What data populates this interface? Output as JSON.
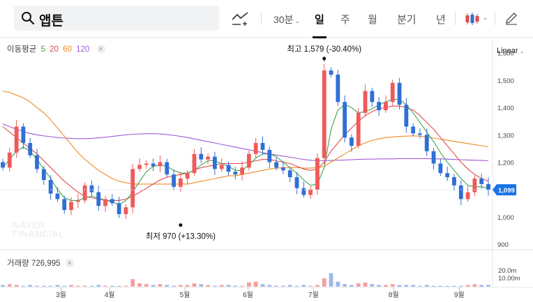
{
  "search": {
    "value": "앱튼"
  },
  "toolbar": {
    "interval_label": "30분",
    "periods": [
      "일",
      "주",
      "월",
      "분기",
      "년"
    ],
    "active_period": "일"
  },
  "legend": {
    "title": "이동평균",
    "ma_periods": [
      {
        "label": "5",
        "color": "#3fa34d"
      },
      {
        "label": "20",
        "color": "#e14b4b"
      },
      {
        "label": "60",
        "color": "#f08a24"
      },
      {
        "label": "120",
        "color": "#a25ad6"
      }
    ],
    "close_icon": "×"
  },
  "scale_mode": "Linear",
  "volume_legend": {
    "label": "거래량 726,995"
  },
  "watermark": [
    "NAVER",
    "FINANCIAL"
  ],
  "colors": {
    "up": "#f05a5a",
    "down": "#2f6fd6",
    "current": "#1a73e8"
  },
  "chart_data": {
    "type": "candlestick",
    "x_ticks": [
      "3월",
      "4월",
      "5월",
      "6월",
      "7월",
      "8월",
      "9월"
    ],
    "y_ticks": [
      "900",
      "1,000",
      "1,100",
      "1,200",
      "1,300",
      "1,400",
      "1,500",
      "1,600"
    ],
    "ylim": [
      880,
      1650
    ],
    "volume_ticks": [
      "20.0m",
      "10.00m"
    ],
    "current_price": "1,099",
    "max_annotation": {
      "text": "최고 1,579 (-30.40%)",
      "value": 1579
    },
    "min_annotation": {
      "text": "최저 970 (+13.30%)",
      "value": 970
    },
    "close_path": [
      1180,
      1235,
      1330,
      1270,
      1225,
      1175,
      1135,
      1085,
      1065,
      1025,
      1055,
      1060,
      1115,
      1090,
      1040,
      1065,
      1050,
      1010,
      1035,
      1175,
      1190,
      1195,
      1185,
      1200,
      1155,
      1110,
      1140,
      1160,
      1230,
      1210,
      1220,
      1175,
      1190,
      1165,
      1155,
      1180,
      1230,
      1270,
      1245,
      1200,
      1180,
      1170,
      1145,
      1105,
      1080,
      1100,
      1215,
      1535,
      1520,
      1420,
      1290,
      1260,
      1380,
      1460,
      1420,
      1390,
      1420,
      1490,
      1410,
      1330,
      1305,
      1300,
      1240,
      1195,
      1160,
      1145,
      1115,
      1065,
      1090,
      1140,
      1120,
      1099
    ],
    "ma_lines": {
      "ma5": [
        1180,
        1210,
        1240,
        1255,
        1240,
        1210,
        1175,
        1140,
        1100,
        1070,
        1060,
        1060,
        1070,
        1075,
        1070,
        1060,
        1055,
        1045,
        1060,
        1090,
        1130,
        1165,
        1185,
        1190,
        1185,
        1170,
        1160,
        1160,
        1170,
        1190,
        1205,
        1205,
        1195,
        1185,
        1170,
        1170,
        1190,
        1215,
        1230,
        1230,
        1220,
        1200,
        1180,
        1160,
        1135,
        1115,
        1120,
        1180,
        1320,
        1390,
        1410,
        1400,
        1380,
        1385,
        1395,
        1410,
        1420,
        1430,
        1430,
        1410,
        1380,
        1345,
        1310,
        1275,
        1235,
        1200,
        1170,
        1140,
        1115,
        1110,
        1110,
        1105
      ],
      "ma20": [
        1330,
        1310,
        1290,
        1270,
        1250,
        1230,
        1205,
        1180,
        1155,
        1130,
        1110,
        1090,
        1075,
        1070,
        1065,
        1060,
        1060,
        1060,
        1065,
        1075,
        1090,
        1105,
        1120,
        1135,
        1145,
        1150,
        1155,
        1160,
        1170,
        1180,
        1185,
        1190,
        1195,
        1195,
        1195,
        1195,
        1200,
        1205,
        1210,
        1210,
        1205,
        1200,
        1195,
        1185,
        1175,
        1170,
        1175,
        1200,
        1240,
        1270,
        1300,
        1325,
        1350,
        1370,
        1385,
        1395,
        1400,
        1405,
        1405,
        1400,
        1390,
        1370,
        1345,
        1320,
        1290,
        1260,
        1230,
        1200,
        1175,
        1155,
        1140,
        1130
      ],
      "ma60": [
        1460,
        1455,
        1445,
        1435,
        1420,
        1400,
        1380,
        1355,
        1325,
        1295,
        1265,
        1235,
        1210,
        1190,
        1170,
        1155,
        1140,
        1130,
        1125,
        1120,
        1120,
        1120,
        1120,
        1120,
        1120,
        1120,
        1120,
        1120,
        1125,
        1130,
        1135,
        1140,
        1145,
        1150,
        1150,
        1155,
        1160,
        1165,
        1170,
        1175,
        1178,
        1180,
        1180,
        1180,
        1178,
        1178,
        1180,
        1185,
        1200,
        1215,
        1230,
        1245,
        1260,
        1270,
        1280,
        1285,
        1290,
        1292,
        1294,
        1295,
        1296,
        1295,
        1292,
        1288,
        1284,
        1280,
        1276,
        1272,
        1268,
        1264,
        1260,
        1256
      ],
      "ma120": [
        1340,
        1330,
        1320,
        1312,
        1305,
        1300,
        1296,
        1293,
        1290,
        1288,
        1287,
        1286,
        1286,
        1287,
        1289,
        1291,
        1294,
        1297,
        1300,
        1302,
        1303,
        1304,
        1304,
        1303,
        1301,
        1298,
        1294,
        1290,
        1285,
        1280,
        1275,
        1270,
        1265,
        1260,
        1255,
        1250,
        1245,
        1240,
        1235,
        1230,
        1226,
        1222,
        1218,
        1214,
        1210,
        1207,
        1205,
        1205,
        1206,
        1207,
        1208,
        1209,
        1210,
        1211,
        1211,
        1212,
        1212,
        1212,
        1213,
        1213,
        1213,
        1213,
        1213,
        1212,
        1212,
        1211,
        1210,
        1209,
        1208,
        1207,
        1206,
        1205
      ]
    },
    "volume": [
      2,
      3,
      2,
      1,
      2,
      1,
      1,
      1,
      2,
      1,
      2,
      1,
      1,
      1,
      2,
      1,
      1,
      1,
      1,
      9,
      4,
      3,
      2,
      3,
      2,
      1,
      2,
      2,
      4,
      3,
      2,
      1,
      2,
      2,
      1,
      1,
      5,
      6,
      3,
      2,
      1,
      1,
      2,
      1,
      2,
      1,
      2,
      10,
      16,
      6,
      3,
      2,
      4,
      5,
      3,
      2,
      2,
      3,
      2,
      2,
      2,
      1,
      2,
      1,
      1,
      1,
      1,
      1,
      2,
      3,
      2,
      2
    ]
  }
}
